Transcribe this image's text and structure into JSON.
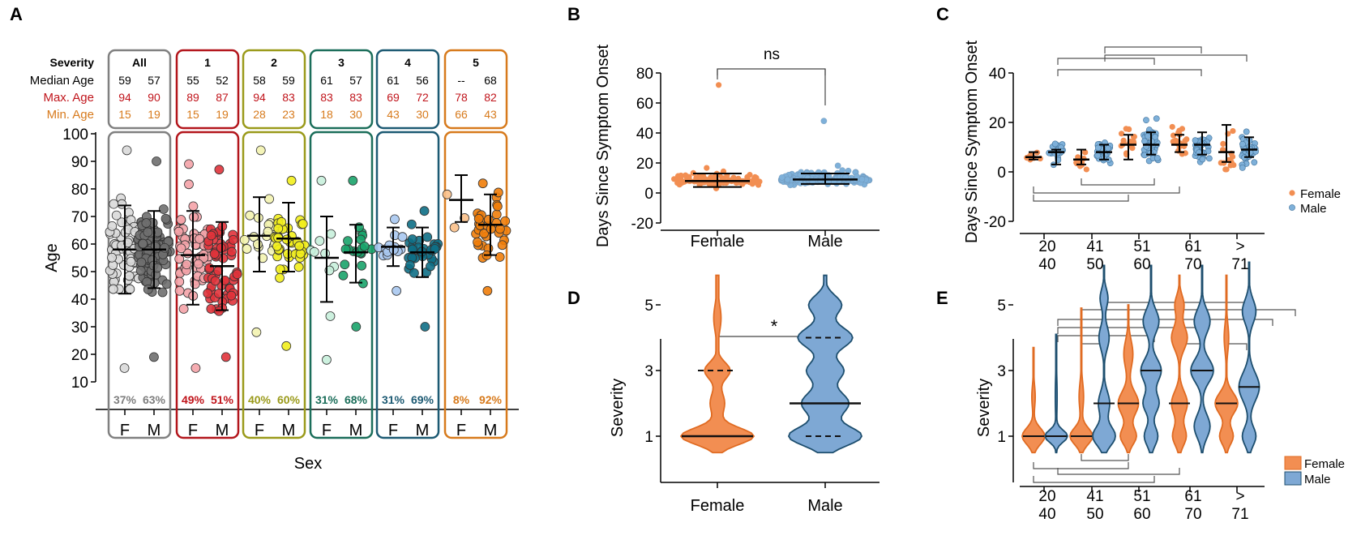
{
  "chart_data": [
    {
      "panel": "A",
      "type": "scatter",
      "xlabel": "Sex",
      "ylabel": "Age",
      "ylim": [
        0,
        100
      ],
      "yticks": [
        10,
        20,
        30,
        40,
        50,
        60,
        70,
        80,
        90,
        100
      ],
      "row_labels": {
        "severity": "Severity",
        "median": "Median Age",
        "max": "Max. Age",
        "min": "Min. Age"
      },
      "groups": [
        {
          "name": "All",
          "color_f": "#d9d9d9",
          "color_m": "#6f6f6f",
          "box": "#808080",
          "text": "#7f7f7f",
          "median": [
            "59",
            "57"
          ],
          "max": [
            "94",
            "90"
          ],
          "min": [
            "15",
            "19"
          ],
          "pct": [
            "37%",
            "63%"
          ],
          "mean": [
            58,
            58
          ],
          "sd_hi": [
            74,
            72
          ],
          "sd_lo": [
            42,
            44
          ],
          "sex": [
            "F",
            "M"
          ]
        },
        {
          "name": "1",
          "color_f": "#f4a3a8",
          "color_m": "#e0333b",
          "box": "#b3161c",
          "text": "#c0141b",
          "median": [
            "55",
            "52"
          ],
          "max": [
            "89",
            "87"
          ],
          "min": [
            "15",
            "19"
          ],
          "pct": [
            "49%",
            "51%"
          ],
          "mean": [
            56,
            52
          ],
          "sd_hi": [
            72,
            68
          ],
          "sd_lo": [
            38,
            36
          ],
          "sex": [
            "F",
            "M"
          ]
        },
        {
          "name": "2",
          "color_f": "#f3f3b0",
          "color_m": "#f2ee1c",
          "box": "#9a9a1a",
          "text": "#9a9a1a",
          "median": [
            "58",
            "59"
          ],
          "max": [
            "94",
            "83"
          ],
          "min": [
            "28",
            "23"
          ],
          "pct": [
            "40%",
            "60%"
          ],
          "mean": [
            63,
            62
          ],
          "sd_hi": [
            77,
            75
          ],
          "sd_lo": [
            50,
            50
          ],
          "sex": [
            "F",
            "M"
          ]
        },
        {
          "name": "3",
          "color_f": "#c8f0dc",
          "color_m": "#1aa36a",
          "box": "#1b6e5a",
          "text": "#1b6e5a",
          "median": [
            "61",
            "57"
          ],
          "max": [
            "83",
            "83"
          ],
          "min": [
            "18",
            "30"
          ],
          "pct": [
            "31%",
            "68%"
          ],
          "mean": [
            55,
            57
          ],
          "sd_hi": [
            70,
            67
          ],
          "sd_lo": [
            39,
            46
          ],
          "sex": [
            "F",
            "M"
          ]
        },
        {
          "name": "4",
          "color_f": "#a8c8ef",
          "color_m": "#0e6f86",
          "box": "#1d5a73",
          "text": "#1d5a73",
          "median": [
            "61",
            "56"
          ],
          "max": [
            "69",
            "72"
          ],
          "min": [
            "43",
            "30"
          ],
          "pct": [
            "31%",
            "69%"
          ],
          "mean": [
            59,
            57
          ],
          "sd_hi": [
            66,
            66
          ],
          "sd_lo": [
            52,
            48
          ],
          "sex": [
            "F",
            "M"
          ]
        },
        {
          "name": "5",
          "color_f": "#f9c089",
          "color_m": "#f07d0a",
          "box": "#d77a1c",
          "text": "#d77a1c",
          "median": [
            "--",
            "68"
          ],
          "max": [
            "78",
            "82"
          ],
          "min": [
            "66",
            "43"
          ],
          "pct": [
            "8%",
            "92%"
          ],
          "mean": [
            76,
            67
          ],
          "sd_hi": [
            85,
            78
          ],
          "sd_lo": [
            68,
            56
          ],
          "sex": [
            "F",
            "M"
          ]
        }
      ]
    },
    {
      "panel": "B",
      "type": "scatter",
      "ylabel": "Days Since Symptom Onset",
      "ylim": [
        -20,
        80
      ],
      "yticks": [
        -20,
        0,
        20,
        40,
        60,
        80
      ],
      "categories": [
        "Female",
        "Male"
      ],
      "median": [
        8,
        9
      ],
      "iqr": [
        [
          4,
          13
        ],
        [
          6,
          13
        ]
      ],
      "significance": "ns",
      "colors": [
        "#f28e52",
        "#7eb0d9"
      ]
    },
    {
      "panel": "C",
      "type": "scatter",
      "ylabel": "Days Since Symptom Onset",
      "ylim": [
        -20,
        40
      ],
      "yticks": [
        -20,
        0,
        20,
        40
      ],
      "categories": [
        [
          "20",
          "40"
        ],
        [
          "41",
          "50"
        ],
        [
          "51",
          "60"
        ],
        [
          "61",
          "70"
        ],
        [
          ">",
          "71"
        ]
      ],
      "legend": [
        "Female",
        "Male"
      ],
      "female_median": [
        6,
        5,
        11,
        11,
        8
      ],
      "female_iqr": [
        [
          5,
          8
        ],
        [
          3,
          9
        ],
        [
          5,
          15
        ],
        [
          8,
          15
        ],
        [
          4,
          19
        ]
      ],
      "male_median": [
        8,
        8,
        11,
        11,
        9
      ],
      "male_iqr": [
        [
          3,
          9
        ],
        [
          5,
          11
        ],
        [
          7,
          16
        ],
        [
          7,
          16
        ],
        [
          6,
          14
        ]
      ]
    },
    {
      "panel": "D",
      "type": "violin",
      "ylabel": "Severity",
      "yticks": [
        1,
        3,
        5
      ],
      "categories": [
        "Female",
        "Male"
      ],
      "medians": [
        1,
        2
      ],
      "quartiles": [
        [
          1,
          3
        ],
        [
          1,
          4
        ]
      ],
      "significance": "*"
    },
    {
      "panel": "E",
      "type": "violin",
      "ylabel": "Severity",
      "yticks": [
        1,
        3,
        5
      ],
      "categories": [
        [
          "20",
          "40"
        ],
        [
          "41",
          "50"
        ],
        [
          "51",
          "60"
        ],
        [
          "61",
          "70"
        ],
        [
          ">",
          "71"
        ]
      ],
      "legend": [
        "Female",
        "Male"
      ],
      "female_median": [
        1,
        1,
        2,
        2,
        2
      ],
      "male_median": [
        1,
        2,
        3,
        3,
        2.5
      ]
    }
  ]
}
